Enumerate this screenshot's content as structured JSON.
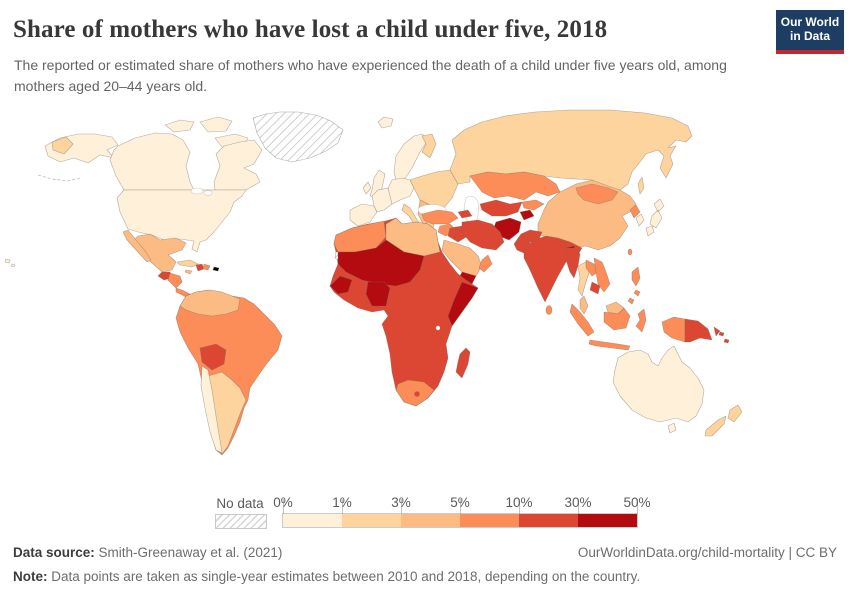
{
  "header": {
    "title": "Share of mothers who have lost a child under five, 2018",
    "subtitle": "The reported or estimated share of mothers who have experienced the death of a child under five years old, among mothers aged 20–44 years old.",
    "logo": {
      "line1": "Our World",
      "line2": "in Data"
    }
  },
  "colors": {
    "logo_bg": "#1d3d63",
    "logo_accent": "#c0262d",
    "title_text": "#383838",
    "subtitle_text": "#646464",
    "footer_text": "#6d6d6d"
  },
  "chart_data": {
    "type": "choropleth-map",
    "title": "Share of mothers who have lost a child under five, 2018",
    "unit": "%",
    "legend": {
      "no_data_label": "No data",
      "no_data_pattern": "diagonal-hatch",
      "tick_labels": [
        "0%",
        "1%",
        "3%",
        "5%",
        "10%",
        "30%",
        "50%"
      ],
      "position": "bottom"
    },
    "bins": [
      {
        "range": "0%–1%",
        "color": "#fef0d9"
      },
      {
        "range": "1%–3%",
        "color": "#fdd49e"
      },
      {
        "range": "3%–5%",
        "color": "#fdbb84"
      },
      {
        "range": "5%–10%",
        "color": "#fc8d59"
      },
      {
        "range": "10%–30%",
        "color": "#dc4733"
      },
      {
        "range": "30%–50%",
        "color": "#b30b10"
      }
    ],
    "regions": [
      {
        "id": "greenland",
        "label": "Greenland",
        "bin": 0
      },
      {
        "id": "western-sahara",
        "label": "Western Sahara",
        "bin": 0
      },
      {
        "id": "canada",
        "label": "Canada",
        "bin": 1
      },
      {
        "id": "arctic-islands",
        "label": "Canadian Arctic",
        "bin": 1
      },
      {
        "id": "usa",
        "label": "United States",
        "bin": 1
      },
      {
        "id": "alaska",
        "label": "Alaska (US)",
        "bin": 1
      },
      {
        "id": "hawaii",
        "label": "Hawaii (US)",
        "bin": 1
      },
      {
        "id": "iceland",
        "label": "Iceland",
        "bin": 1
      },
      {
        "id": "united-kingdom",
        "label": "United Kingdom",
        "bin": 1
      },
      {
        "id": "ireland",
        "label": "Ireland",
        "bin": 1
      },
      {
        "id": "norway-sweden",
        "label": "Norway & Sweden",
        "bin": 1
      },
      {
        "id": "denmark",
        "label": "Denmark",
        "bin": 1
      },
      {
        "id": "france",
        "label": "France",
        "bin": 1
      },
      {
        "id": "spain-portugal",
        "label": "Spain & Portugal",
        "bin": 1
      },
      {
        "id": "central-europe",
        "label": "Central Europe",
        "bin": 1
      },
      {
        "id": "japan",
        "label": "Japan",
        "bin": 1
      },
      {
        "id": "south-korea",
        "label": "South Korea",
        "bin": 1
      },
      {
        "id": "australia",
        "label": "Australia",
        "bin": 1
      },
      {
        "id": "chile",
        "label": "Chile",
        "bin": 1
      },
      {
        "id": "russia",
        "label": "Russia",
        "bin": 2
      },
      {
        "id": "finland",
        "label": "Finland",
        "bin": 2
      },
      {
        "id": "eastern-europe",
        "label": "Eastern Europe",
        "bin": 2
      },
      {
        "id": "italy",
        "label": "Italy",
        "bin": 2
      },
      {
        "id": "greece",
        "label": "Greece",
        "bin": 2
      },
      {
        "id": "cuba",
        "label": "Cuba",
        "bin": 2
      },
      {
        "id": "argentina",
        "label": "Argentina & Uruguay",
        "bin": 2
      },
      {
        "id": "thailand",
        "label": "Thailand",
        "bin": 2
      },
      {
        "id": "new-zealand",
        "label": "New Zealand",
        "bin": 2
      },
      {
        "id": "mexico",
        "label": "Mexico",
        "bin": 3
      },
      {
        "id": "china",
        "label": "China",
        "bin": 3
      },
      {
        "id": "colombia-venezuela",
        "label": "Colombia & Venezuela",
        "bin": 3
      },
      {
        "id": "jamaica",
        "label": "Jamaica",
        "bin": 3
      },
      {
        "id": "libya-egypt",
        "label": "Libya & Egypt",
        "bin": 3
      },
      {
        "id": "saudi-arabia",
        "label": "Saudi Arabia",
        "bin": 3
      },
      {
        "id": "malaysia",
        "label": "Malaysia",
        "bin": 3
      },
      {
        "id": "balkans",
        "label": "Balkans",
        "bin": 3
      },
      {
        "id": "morocco-algeria",
        "label": "Morocco & Algeria",
        "bin": 4
      },
      {
        "id": "honduras-nicaragua",
        "label": "Honduras & Nicaragua",
        "bin": 4
      },
      {
        "id": "costa-rica-panama",
        "label": "Costa Rica & Panama",
        "bin": 4
      },
      {
        "id": "dominican-republic",
        "label": "Dominican Republic",
        "bin": 4
      },
      {
        "id": "south-america",
        "label": "Brazil, Peru & neighbors",
        "bin": 4
      },
      {
        "id": "south-africa",
        "label": "South Africa",
        "bin": 4
      },
      {
        "id": "turkey",
        "label": "Turkey",
        "bin": 4
      },
      {
        "id": "levant",
        "label": "Levant",
        "bin": 4
      },
      {
        "id": "oman",
        "label": "Oman",
        "bin": 4
      },
      {
        "id": "kazakhstan",
        "label": "Kazakhstan",
        "bin": 4
      },
      {
        "id": "kyrgyzstan",
        "label": "Kyrgyzstan",
        "bin": 4
      },
      {
        "id": "mongolia",
        "label": "Mongolia",
        "bin": 4
      },
      {
        "id": "north-korea",
        "label": "North Korea",
        "bin": 4
      },
      {
        "id": "laos",
        "label": "Laos",
        "bin": 4
      },
      {
        "id": "vietnam",
        "label": "Vietnam",
        "bin": 4
      },
      {
        "id": "philippines",
        "label": "Philippines",
        "bin": 4
      },
      {
        "id": "indonesia",
        "label": "Indonesia",
        "bin": 4
      },
      {
        "id": "sri-lanka",
        "label": "Sri Lanka",
        "bin": 4
      },
      {
        "id": "taiwan",
        "label": "Taiwan",
        "bin": 4
      },
      {
        "id": "sub-saharan-africa",
        "label": "Sub-Saharan Africa",
        "bin": 5
      },
      {
        "id": "guatemala",
        "label": "Guatemala",
        "bin": 5
      },
      {
        "id": "haiti",
        "label": "Haiti",
        "bin": 5
      },
      {
        "id": "bolivia",
        "label": "Bolivia",
        "bin": 5
      },
      {
        "id": "madagascar",
        "label": "Madagascar",
        "bin": 5
      },
      {
        "id": "lesotho",
        "label": "Lesotho",
        "bin": 5
      },
      {
        "id": "caucasus",
        "label": "Caucasus",
        "bin": 5
      },
      {
        "id": "iraq",
        "label": "Iraq",
        "bin": 5
      },
      {
        "id": "iran",
        "label": "Iran",
        "bin": 5
      },
      {
        "id": "uzbekistan-turkmenistan",
        "label": "Uzbekistan & Turkmenistan",
        "bin": 5
      },
      {
        "id": "pakistan",
        "label": "Pakistan",
        "bin": 5
      },
      {
        "id": "india",
        "label": "India",
        "bin": 5
      },
      {
        "id": "myanmar",
        "label": "Myanmar",
        "bin": 5
      },
      {
        "id": "cambodia",
        "label": "Cambodia",
        "bin": 5
      },
      {
        "id": "papua-new-guinea",
        "label": "Papua New Guinea",
        "bin": 5
      },
      {
        "id": "solomon-islands",
        "label": "Solomon Islands",
        "bin": 5
      },
      {
        "id": "sahel",
        "label": "Mali, Niger & Chad",
        "bin": 6
      },
      {
        "id": "nigeria",
        "label": "Nigeria",
        "bin": 6
      },
      {
        "id": "guinea-sierra-leone",
        "label": "Guinea & Sierra Leone",
        "bin": 6
      },
      {
        "id": "somalia",
        "label": "Somalia",
        "bin": 6
      },
      {
        "id": "yemen",
        "label": "Yemen",
        "bin": 6
      },
      {
        "id": "afghanistan",
        "label": "Afghanistan",
        "bin": 6
      },
      {
        "id": "tajikistan",
        "label": "Tajikistan",
        "bin": 6
      },
      {
        "id": "bangladesh",
        "label": "Bangladesh",
        "bin": 6
      }
    ]
  },
  "footer": {
    "datasource_label": "Data source:",
    "datasource": "Smith-Greenaway et al. (2021)",
    "link": "OurWorldinData.org/child-mortality | CC BY",
    "note_label": "Note:",
    "note": "Data points are taken as single-year estimates between 2010 and 2018, depending on the country."
  }
}
